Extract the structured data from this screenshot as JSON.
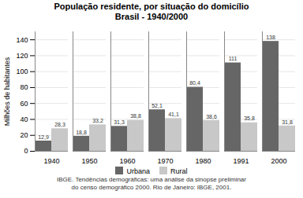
{
  "chart_data": {
    "type": "bar",
    "title": "População residente, por situação do domicílio",
    "subtitle": "Brasil - 1940/2000",
    "categories": [
      "1940",
      "1950",
      "1960",
      "1970",
      "1980",
      "1991",
      "2000"
    ],
    "series": [
      {
        "name": "Urbana",
        "color": "#666666",
        "values": [
          12.9,
          18.8,
          31.3,
          52.1,
          80.4,
          111,
          138
        ],
        "value_labels": [
          "12,9",
          "18,8",
          "31,3",
          "52,1",
          "80,4",
          "111",
          "138"
        ]
      },
      {
        "name": "Rural",
        "color": "#c8c8c8",
        "values": [
          28.3,
          33.2,
          38.8,
          41.1,
          38.6,
          35.8,
          31.8
        ],
        "value_labels": [
          "28,3",
          "33,2",
          "38,8",
          "41,1",
          "38,6",
          "35,8",
          "31,8"
        ]
      }
    ],
    "ylabel": "Milhões de habitantes",
    "ylim": [
      0,
      150
    ],
    "yticks": [
      0,
      20,
      40,
      60,
      80,
      100,
      120,
      140
    ],
    "grid": true,
    "legend": "bottom",
    "data_labels": true,
    "annotations": [
      "IBGE. Tendências demográficas: uma análise da sinopse preliminar",
      "do censo demográfico 2000. Rio de Janeiro: IBGE, 2001."
    ]
  }
}
